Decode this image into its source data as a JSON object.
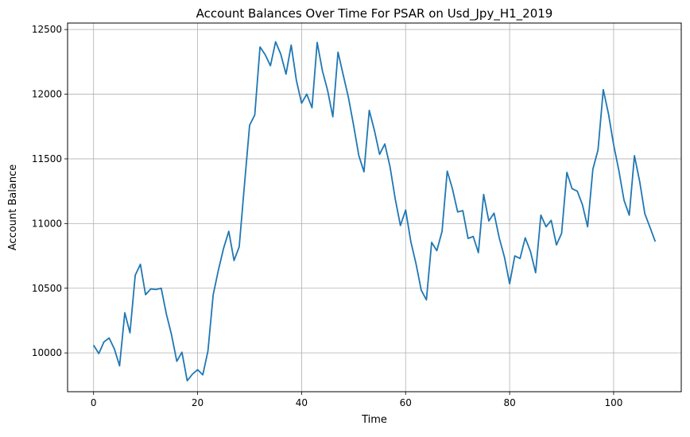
{
  "chart_data": {
    "type": "line",
    "title": "Account Balances Over Time For PSAR on Usd_Jpy_H1_2019",
    "xlabel": "Time",
    "ylabel": "Account Balance",
    "xlim": [
      -5,
      113
    ],
    "ylim": [
      9700,
      12550
    ],
    "grid": true,
    "line_color": "#1f77b4",
    "x_ticks": [
      0,
      20,
      40,
      60,
      80,
      100
    ],
    "y_ticks": [
      10000,
      10500,
      11000,
      11500,
      12000,
      12500
    ],
    "x_tick_labels": [
      "0",
      "20",
      "40",
      "60",
      "80",
      "100"
    ],
    "y_tick_labels": [
      "10000",
      "10500",
      "11000",
      "11500",
      "12000",
      "12500"
    ],
    "series": [
      {
        "x": [
          0,
          1,
          2,
          3,
          4,
          5,
          6,
          7,
          8,
          9,
          10,
          11,
          12,
          13,
          14,
          15,
          16,
          17,
          18,
          19,
          20,
          21,
          22,
          23,
          24,
          25,
          26,
          27,
          28,
          29,
          30,
          31,
          32,
          33,
          34,
          35,
          36,
          37,
          38,
          39,
          40,
          41,
          42,
          43,
          44,
          45,
          46,
          47,
          48,
          49,
          50,
          51,
          52,
          53,
          54,
          55,
          56,
          57,
          58,
          59,
          60,
          61,
          62,
          63,
          64,
          65,
          66,
          67,
          68,
          69,
          70,
          71,
          72,
          73,
          74,
          75,
          76,
          77,
          78,
          79,
          80,
          81,
          82,
          83,
          84,
          85,
          86,
          87,
          88,
          89,
          90,
          91,
          92,
          93,
          94,
          95,
          96,
          97,
          98,
          99,
          100,
          101,
          102,
          103,
          104,
          105,
          106,
          107,
          108
        ],
        "values": [
          10060,
          9995,
          10085,
          10115,
          10030,
          9900,
          10310,
          10155,
          10600,
          10685,
          10450,
          10495,
          10490,
          10500,
          10300,
          10140,
          9935,
          10005,
          9785,
          9835,
          9870,
          9830,
          10015,
          10450,
          10640,
          10810,
          10940,
          10715,
          10820,
          11290,
          11760,
          11840,
          12365,
          12305,
          12220,
          12405,
          12310,
          12155,
          12380,
          12105,
          11930,
          12000,
          11895,
          12400,
          12180,
          12030,
          11825,
          12325,
          12150,
          11975,
          11760,
          11525,
          11400,
          11875,
          11720,
          11535,
          11615,
          11440,
          11190,
          10985,
          11105,
          10860,
          10690,
          10485,
          10410,
          10855,
          10790,
          10940,
          11405,
          11270,
          11090,
          11100,
          10885,
          10900,
          10775,
          11225,
          11020,
          11080,
          10890,
          10740,
          10535,
          10750,
          10730,
          10890,
          10785,
          10620,
          11065,
          10975,
          11025,
          10835,
          10925,
          11395,
          11270,
          11250,
          11145,
          10975,
          11420,
          11570,
          12035,
          11850,
          11610,
          11410,
          11180,
          11065,
          11525,
          11325,
          11075,
          10970,
          10860
        ]
      }
    ]
  }
}
